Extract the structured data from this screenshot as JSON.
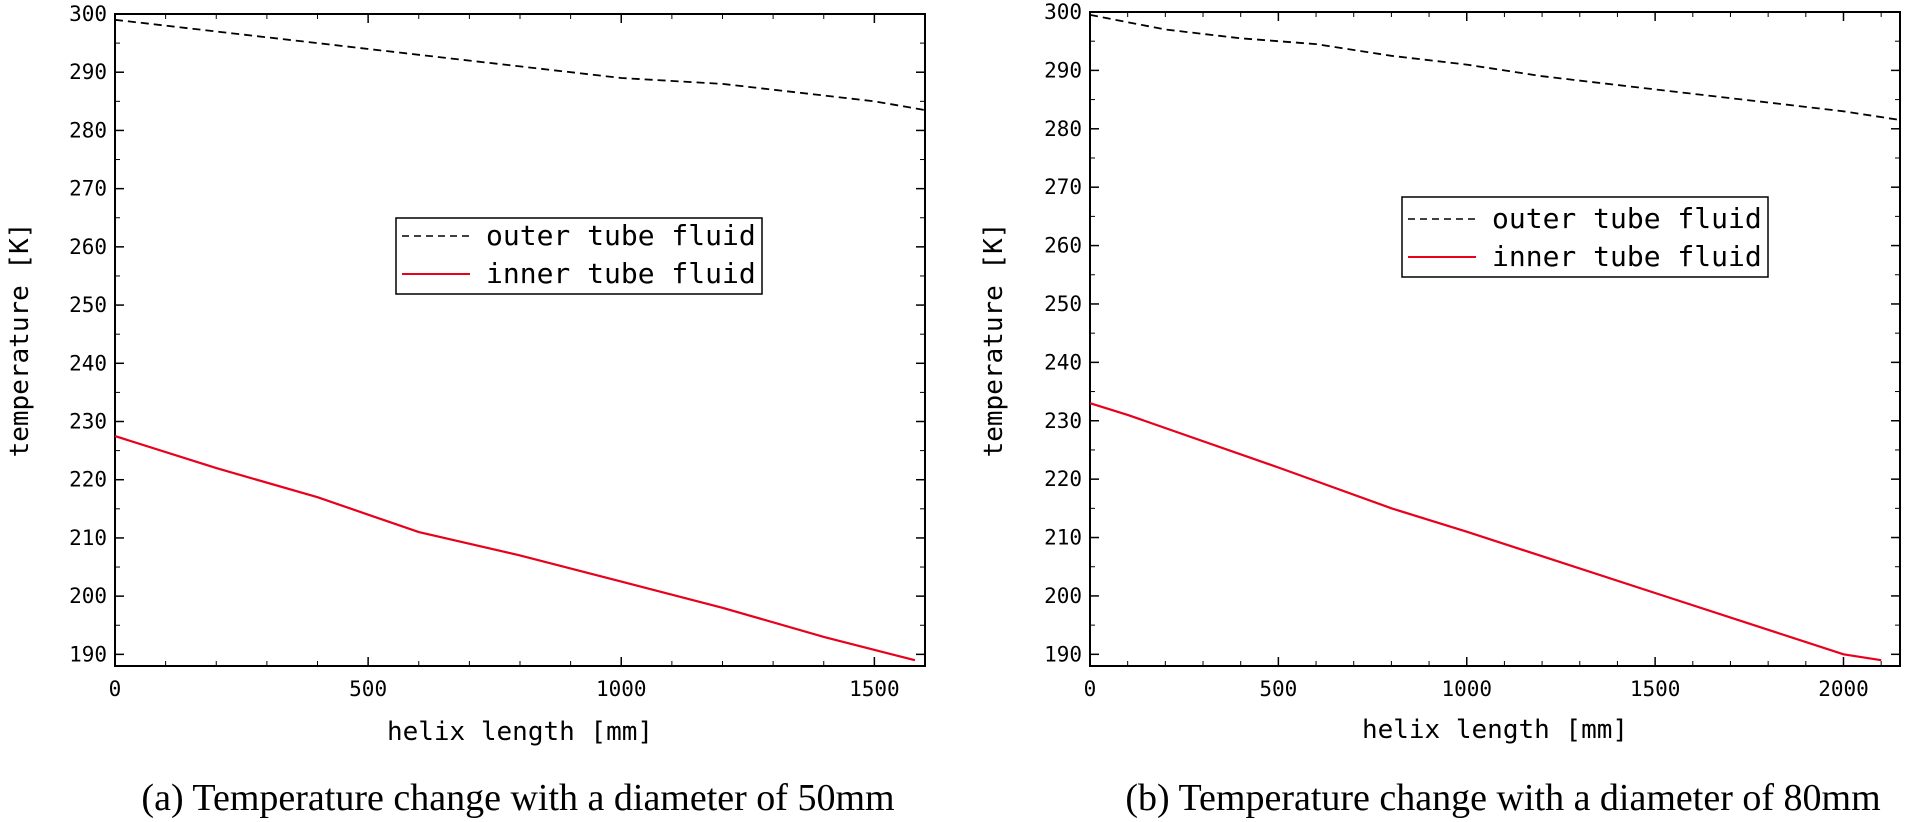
{
  "chart_data": [
    {
      "type": "line",
      "caption": "(a) Temperature change with a diameter of 50mm",
      "xlabel": "helix length [mm]",
      "ylabel": "temperature [K]",
      "xlim": [
        0,
        1600
      ],
      "ylim": [
        188,
        300
      ],
      "xticks": [
        0,
        500,
        1000,
        1500
      ],
      "yticks": [
        190,
        200,
        210,
        220,
        230,
        240,
        250,
        260,
        270,
        280,
        290,
        300
      ],
      "legend_position": "center-right",
      "series": [
        {
          "name": "outer tube fluid",
          "style": "dashed",
          "color": "#000000",
          "x": [
            0,
            200,
            400,
            600,
            800,
            1000,
            1200,
            1400,
            1500,
            1600
          ],
          "values": [
            299,
            297,
            295,
            293,
            291,
            289,
            288,
            286,
            285,
            283.5
          ]
        },
        {
          "name": "inner tube fluid",
          "style": "solid",
          "color": "#e8001c",
          "x": [
            0,
            200,
            400,
            600,
            800,
            1000,
            1200,
            1400,
            1580
          ],
          "values": [
            227.5,
            222,
            217,
            211,
            207,
            202.5,
            198,
            193,
            189
          ]
        }
      ]
    },
    {
      "type": "line",
      "caption": "(b) Temperature change with a diameter of 80mm",
      "xlabel": "helix length [mm]",
      "ylabel": "temperature [K]",
      "xlim": [
        0,
        2150
      ],
      "ylim": [
        188,
        300
      ],
      "xticks": [
        0,
        500,
        1000,
        1500,
        2000
      ],
      "yticks": [
        190,
        200,
        210,
        220,
        230,
        240,
        250,
        260,
        270,
        280,
        290,
        300
      ],
      "legend_position": "center-right",
      "series": [
        {
          "name": "outer tube fluid",
          "style": "dashed",
          "color": "#000000",
          "x": [
            0,
            200,
            400,
            600,
            800,
            1000,
            1200,
            1400,
            1600,
            1800,
            2000,
            2150
          ],
          "values": [
            299.5,
            297,
            295.5,
            294.5,
            292.5,
            291,
            289,
            287.5,
            286,
            284.5,
            283,
            281.5
          ]
        },
        {
          "name": "inner tube fluid",
          "style": "solid",
          "color": "#e8001c",
          "x": [
            0,
            100,
            500,
            800,
            1000,
            1500,
            2000,
            2100
          ],
          "values": [
            233,
            231,
            222,
            215,
            211,
            200.5,
            190,
            189
          ]
        }
      ]
    }
  ]
}
